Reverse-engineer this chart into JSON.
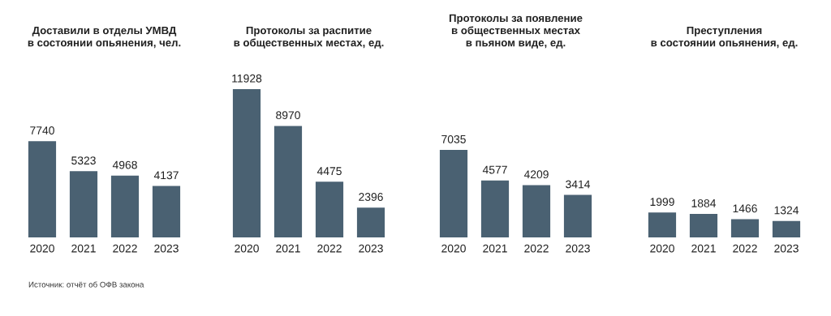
{
  "chart_data": [
    {
      "type": "bar",
      "title": "Доставили в отделы УМВД\nв состоянии опьянения, чел.",
      "categories": [
        "2020",
        "2021",
        "2022",
        "2023"
      ],
      "values": [
        7740,
        5323,
        4968,
        4137
      ],
      "color": "#4a6172",
      "data_labels": true,
      "annotations": [
        "Источник: отчёт об ОФВ закона"
      ]
    },
    {
      "type": "bar",
      "title": "Протоколы за распитие\nв общественных местах, ед.",
      "categories": [
        "2020",
        "2021",
        "2022",
        "2023"
      ],
      "values": [
        11928,
        8970,
        4475,
        2396
      ],
      "color": "#4a6172",
      "data_labels": true
    },
    {
      "type": "bar",
      "title": "Протоколы за появление\nв общественных местах\nв пьяном виде, ед.",
      "categories": [
        "2020",
        "2021",
        "2022",
        "2023"
      ],
      "values": [
        7035,
        4577,
        4209,
        3414
      ],
      "color": "#4a6172",
      "data_labels": true
    },
    {
      "type": "bar",
      "title": "Преступления\nв состоянии опьянения, ед.",
      "categories": [
        "2020",
        "2021",
        "2022",
        "2023"
      ],
      "values": [
        1999,
        1884,
        1466,
        1324
      ],
      "color": "#4a6172",
      "data_labels": true
    }
  ]
}
